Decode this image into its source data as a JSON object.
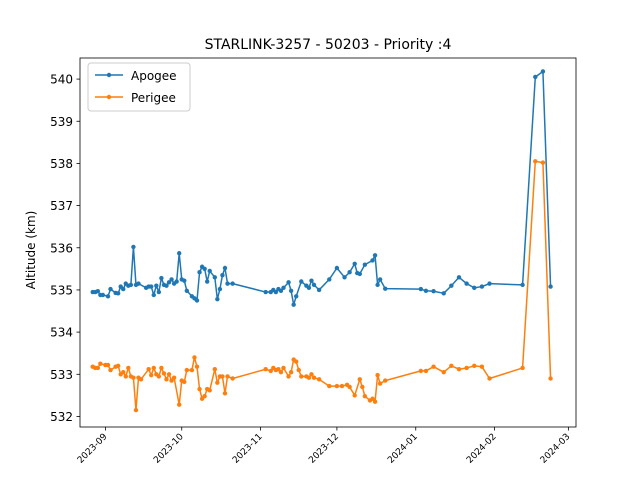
{
  "chart_data": {
    "type": "line",
    "title": "STARLINK-3257 - 50203 - Priority :4",
    "xlabel": "",
    "ylabel": "Altitude (km)",
    "xlim": [
      "2023-08-22",
      "2024-03-04"
    ],
    "ylim": [
      531.75,
      540.5
    ],
    "grid": false,
    "legend": "top-left",
    "x_ticks": [
      "2023-09",
      "2023-10",
      "2023-11",
      "2023-12",
      "2024-01",
      "2024-02",
      "2024-03"
    ],
    "y_ticks": [
      532,
      533,
      534,
      535,
      536,
      537,
      538,
      539,
      540
    ],
    "series": [
      {
        "name": "Apogee",
        "color": "#1f77b4",
        "points": [
          [
            "2023-08-27",
            534.95
          ],
          [
            "2023-08-28",
            534.95
          ],
          [
            "2023-08-29",
            534.97
          ],
          [
            "2023-08-30",
            534.88
          ],
          [
            "2023-08-31",
            534.88
          ],
          [
            "2023-09-02",
            534.85
          ],
          [
            "2023-09-03",
            535.02
          ],
          [
            "2023-09-05",
            534.93
          ],
          [
            "2023-09-06",
            534.92
          ],
          [
            "2023-09-07",
            535.08
          ],
          [
            "2023-09-08",
            535.02
          ],
          [
            "2023-09-09",
            535.15
          ],
          [
            "2023-09-10",
            535.1
          ],
          [
            "2023-09-11",
            535.12
          ],
          [
            "2023-09-12",
            536.02
          ],
          [
            "2023-09-13",
            535.12
          ],
          [
            "2023-09-14",
            535.15
          ],
          [
            "2023-09-17",
            535.05
          ],
          [
            "2023-09-18",
            535.08
          ],
          [
            "2023-09-19",
            535.08
          ],
          [
            "2023-09-20",
            534.88
          ],
          [
            "2023-09-21",
            535.1
          ],
          [
            "2023-09-22",
            534.95
          ],
          [
            "2023-09-23",
            535.28
          ],
          [
            "2023-09-24",
            535.12
          ],
          [
            "2023-09-25",
            535.1
          ],
          [
            "2023-09-26",
            535.18
          ],
          [
            "2023-09-27",
            535.25
          ],
          [
            "2023-09-28",
            535.15
          ],
          [
            "2023-09-29",
            535.2
          ],
          [
            "2023-09-30",
            535.87
          ],
          [
            "2023-10-01",
            535.25
          ],
          [
            "2023-10-02",
            535.22
          ],
          [
            "2023-10-03",
            534.98
          ],
          [
            "2023-10-05",
            534.85
          ],
          [
            "2023-10-06",
            534.8
          ],
          [
            "2023-10-07",
            534.75
          ],
          [
            "2023-10-08",
            535.42
          ],
          [
            "2023-10-09",
            535.55
          ],
          [
            "2023-10-10",
            535.5
          ],
          [
            "2023-10-11",
            535.2
          ],
          [
            "2023-10-12",
            535.45
          ],
          [
            "2023-10-14",
            535.3
          ],
          [
            "2023-10-15",
            534.78
          ],
          [
            "2023-10-16",
            535.02
          ],
          [
            "2023-10-17",
            535.35
          ],
          [
            "2023-10-18",
            535.52
          ],
          [
            "2023-10-19",
            535.15
          ],
          [
            "2023-10-21",
            535.15
          ],
          [
            "2023-11-03",
            534.95
          ],
          [
            "2023-11-05",
            534.95
          ],
          [
            "2023-11-06",
            535.0
          ],
          [
            "2023-11-07",
            534.95
          ],
          [
            "2023-11-08",
            535.02
          ],
          [
            "2023-11-09",
            534.98
          ],
          [
            "2023-11-10",
            535.05
          ],
          [
            "2023-11-12",
            535.18
          ],
          [
            "2023-11-13",
            534.98
          ],
          [
            "2023-11-14",
            534.65
          ],
          [
            "2023-11-15",
            534.85
          ],
          [
            "2023-11-17",
            535.2
          ],
          [
            "2023-11-19",
            535.1
          ],
          [
            "2023-11-20",
            535.05
          ],
          [
            "2023-11-21",
            535.22
          ],
          [
            "2023-11-22",
            535.12
          ],
          [
            "2023-11-24",
            535.0
          ],
          [
            "2023-11-28",
            535.25
          ],
          [
            "2023-12-01",
            535.52
          ],
          [
            "2023-12-04",
            535.3
          ],
          [
            "2023-12-06",
            535.42
          ],
          [
            "2023-12-08",
            535.62
          ],
          [
            "2023-12-09",
            535.4
          ],
          [
            "2023-12-10",
            535.38
          ],
          [
            "2023-12-12",
            535.6
          ],
          [
            "2023-12-15",
            535.7
          ],
          [
            "2023-12-16",
            535.82
          ],
          [
            "2023-12-17",
            535.12
          ],
          [
            "2023-12-18",
            535.25
          ],
          [
            "2023-12-20",
            535.03
          ],
          [
            "2024-01-03",
            535.02
          ],
          [
            "2024-01-05",
            534.98
          ],
          [
            "2024-01-08",
            534.97
          ],
          [
            "2024-01-12",
            534.92
          ],
          [
            "2024-01-15",
            535.1
          ],
          [
            "2024-01-18",
            535.3
          ],
          [
            "2024-01-21",
            535.15
          ],
          [
            "2024-01-24",
            535.05
          ],
          [
            "2024-01-27",
            535.08
          ],
          [
            "2024-01-30",
            535.15
          ],
          [
            "2024-02-12",
            535.12
          ],
          [
            "2024-02-17",
            540.05
          ],
          [
            "2024-02-20",
            540.18
          ],
          [
            "2024-02-23",
            535.08
          ]
        ]
      },
      {
        "name": "Perigee",
        "color": "#ff7f0e",
        "points": [
          [
            "2023-08-27",
            533.18
          ],
          [
            "2023-08-28",
            533.15
          ],
          [
            "2023-08-29",
            533.15
          ],
          [
            "2023-08-30",
            533.25
          ],
          [
            "2023-09-01",
            533.22
          ],
          [
            "2023-09-02",
            533.22
          ],
          [
            "2023-09-03",
            533.1
          ],
          [
            "2023-09-05",
            533.18
          ],
          [
            "2023-09-06",
            533.2
          ],
          [
            "2023-09-07",
            533.0
          ],
          [
            "2023-09-08",
            533.05
          ],
          [
            "2023-09-09",
            532.95
          ],
          [
            "2023-09-10",
            533.15
          ],
          [
            "2023-09-11",
            532.95
          ],
          [
            "2023-09-12",
            532.92
          ],
          [
            "2023-09-13",
            532.15
          ],
          [
            "2023-09-14",
            532.92
          ],
          [
            "2023-09-15",
            532.88
          ],
          [
            "2023-09-18",
            533.12
          ],
          [
            "2023-09-19",
            532.98
          ],
          [
            "2023-09-20",
            533.15
          ],
          [
            "2023-09-21",
            533.0
          ],
          [
            "2023-09-22",
            532.95
          ],
          [
            "2023-09-23",
            533.15
          ],
          [
            "2023-09-24",
            533.02
          ],
          [
            "2023-09-25",
            532.88
          ],
          [
            "2023-09-26",
            533.0
          ],
          [
            "2023-09-27",
            532.85
          ],
          [
            "2023-09-28",
            532.92
          ],
          [
            "2023-09-30",
            532.28
          ],
          [
            "2023-10-01",
            532.85
          ],
          [
            "2023-10-02",
            532.82
          ],
          [
            "2023-10-03",
            533.1
          ],
          [
            "2023-10-05",
            533.1
          ],
          [
            "2023-10-06",
            533.4
          ],
          [
            "2023-10-07",
            533.18
          ],
          [
            "2023-10-08",
            532.65
          ],
          [
            "2023-10-09",
            532.42
          ],
          [
            "2023-10-10",
            532.48
          ],
          [
            "2023-10-11",
            532.65
          ],
          [
            "2023-10-12",
            532.62
          ],
          [
            "2023-10-14",
            533.12
          ],
          [
            "2023-10-15",
            532.8
          ],
          [
            "2023-10-16",
            532.95
          ],
          [
            "2023-10-17",
            532.95
          ],
          [
            "2023-10-18",
            532.55
          ],
          [
            "2023-10-19",
            532.95
          ],
          [
            "2023-10-21",
            532.9
          ],
          [
            "2023-11-03",
            533.12
          ],
          [
            "2023-11-05",
            533.08
          ],
          [
            "2023-11-06",
            533.15
          ],
          [
            "2023-11-07",
            533.1
          ],
          [
            "2023-11-08",
            533.12
          ],
          [
            "2023-11-09",
            533.05
          ],
          [
            "2023-11-10",
            533.15
          ],
          [
            "2023-11-12",
            532.95
          ],
          [
            "2023-11-13",
            533.05
          ],
          [
            "2023-11-14",
            533.35
          ],
          [
            "2023-11-15",
            533.3
          ],
          [
            "2023-11-16",
            533.1
          ],
          [
            "2023-11-17",
            532.95
          ],
          [
            "2023-11-19",
            532.95
          ],
          [
            "2023-11-20",
            532.92
          ],
          [
            "2023-11-21",
            533.0
          ],
          [
            "2023-11-22",
            532.92
          ],
          [
            "2023-11-24",
            532.88
          ],
          [
            "2023-11-28",
            532.72
          ],
          [
            "2023-12-01",
            532.72
          ],
          [
            "2023-12-03",
            532.72
          ],
          [
            "2023-12-05",
            532.75
          ],
          [
            "2023-12-06",
            532.7
          ],
          [
            "2023-12-08",
            532.5
          ],
          [
            "2023-12-10",
            532.88
          ],
          [
            "2023-12-11",
            532.7
          ],
          [
            "2023-12-12",
            532.48
          ],
          [
            "2023-12-14",
            532.38
          ],
          [
            "2023-12-15",
            532.42
          ],
          [
            "2023-12-16",
            532.35
          ],
          [
            "2023-12-17",
            532.98
          ],
          [
            "2023-12-18",
            532.78
          ],
          [
            "2023-12-20",
            532.85
          ],
          [
            "2024-01-03",
            533.08
          ],
          [
            "2024-01-05",
            533.08
          ],
          [
            "2024-01-08",
            533.18
          ],
          [
            "2024-01-12",
            533.05
          ],
          [
            "2024-01-15",
            533.2
          ],
          [
            "2024-01-18",
            533.12
          ],
          [
            "2024-01-21",
            533.15
          ],
          [
            "2024-01-24",
            533.2
          ],
          [
            "2024-01-27",
            533.18
          ],
          [
            "2024-01-30",
            532.9
          ],
          [
            "2024-02-12",
            533.15
          ],
          [
            "2024-02-17",
            538.05
          ],
          [
            "2024-02-20",
            538.02
          ],
          [
            "2024-02-23",
            532.9
          ]
        ]
      }
    ]
  }
}
